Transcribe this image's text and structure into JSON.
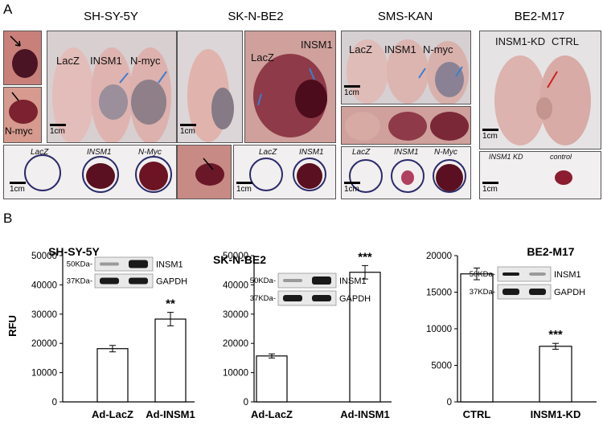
{
  "panelA": {
    "letter": "A",
    "cells": [
      {
        "title": "SH-SY-5Y",
        "labels": [
          "LacZ",
          "INSM1",
          "N-myc"
        ],
        "inset_label": "N-myc",
        "scale": "1cm",
        "scale2": "1cm",
        "tumor_labels": [
          "LacZ",
          "INSM1",
          "N-Myc"
        ]
      },
      {
        "title": "SK-N-BE2",
        "labels": [
          "LacZ",
          "INSM1"
        ],
        "scale": "1cm",
        "scale2": "1cm",
        "tumor_labels": [
          "LacZ",
          "INSM1"
        ]
      },
      {
        "title": "SMS-KAN",
        "labels": [
          "LacZ",
          "INSM1",
          "N-myc"
        ],
        "scale": "1cm",
        "scale2": "1cm",
        "tumor_labels": [
          "LacZ",
          "INSM1",
          "N-Myc"
        ]
      },
      {
        "title": "BE2-M17",
        "labels": [
          "INSM1-KD",
          "CTRL"
        ],
        "scale": "1cm",
        "scale2": "1cm",
        "tumor_labels": [
          "INSM1 KD",
          "control"
        ]
      }
    ]
  },
  "panelB": {
    "letter": "B",
    "ylabel": "RFU",
    "colors": {
      "bar_fill": "#ffffff",
      "bar_stroke": "#000000",
      "band": "#1a1a1a"
    }
  },
  "chart_data": [
    {
      "type": "bar",
      "title": "SH-SY-5Y",
      "categories": [
        "Ad-LacZ",
        "Ad-INSM1"
      ],
      "values": [
        18200,
        28300
      ],
      "errors": [
        1100,
        2300
      ],
      "significance": [
        "",
        "**"
      ],
      "ylabel": "RFU",
      "ylim": [
        0,
        50000
      ],
      "yticks": [
        0,
        10000,
        20000,
        30000,
        40000,
        50000
      ],
      "blot": {
        "kda": [
          "50KDa",
          "37KDa"
        ],
        "proteins": [
          "INSM1",
          "GAPDH"
        ]
      }
    },
    {
      "type": "bar",
      "title": "SK-N-BE2",
      "categories": [
        "Ad-LacZ",
        "Ad-INSM1"
      ],
      "values": [
        15700,
        44300
      ],
      "errors": [
        700,
        2300
      ],
      "significance": [
        "",
        "***"
      ],
      "ylabel": "",
      "ylim": [
        0,
        50000
      ],
      "yticks": [
        0,
        10000,
        20000,
        30000,
        40000,
        50000
      ],
      "blot": {
        "kda": [
          "50KDa",
          "37KDa"
        ],
        "proteins": [
          "INSM1",
          "GAPDH"
        ]
      }
    },
    {
      "type": "bar",
      "title": "BE2-M17",
      "categories": [
        "CTRL",
        "INSM1-KD"
      ],
      "values": [
        17500,
        7600
      ],
      "errors": [
        800,
        400
      ],
      "significance": [
        "",
        "***"
      ],
      "ylabel": "",
      "ylim": [
        0,
        20000
      ],
      "yticks": [
        0,
        5000,
        10000,
        15000,
        20000
      ],
      "blot": {
        "kda": [
          "50KDa",
          "37KDa"
        ],
        "proteins": [
          "INSM1",
          "GAPDH"
        ]
      }
    }
  ]
}
